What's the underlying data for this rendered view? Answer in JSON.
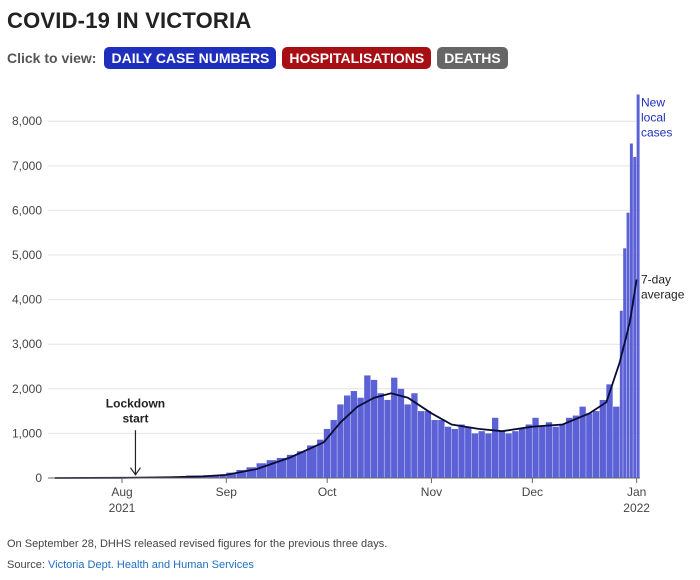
{
  "header": {
    "title": "COVID-19 IN VICTORIA",
    "toggle_label": "Click to view:",
    "buttons": [
      {
        "label": "DAILY CASE NUMBERS",
        "color": "#1e2fbe"
      },
      {
        "label": "HOSPITALISATIONS",
        "color": "#a60f14"
      },
      {
        "label": "DEATHS",
        "color": "#666666"
      }
    ]
  },
  "chart_data": {
    "type": "bar",
    "x_start": "2021-07-10",
    "x_end": "2022-01-02",
    "ylim": [
      0,
      8700
    ],
    "y_ticks": [
      0,
      1000,
      2000,
      3000,
      4000,
      5000,
      6000,
      7000,
      8000
    ],
    "y_tick_labels": [
      "0",
      "1,000",
      "2,000",
      "3,000",
      "4,000",
      "5,000",
      "6,000",
      "7,000",
      "8,000"
    ],
    "x_ticks": [
      {
        "date": "2021-08-01",
        "label": "Aug",
        "sublabel": "2021"
      },
      {
        "date": "2021-09-01",
        "label": "Sep",
        "sublabel": ""
      },
      {
        "date": "2021-10-01",
        "label": "Oct",
        "sublabel": ""
      },
      {
        "date": "2021-11-01",
        "label": "Nov",
        "sublabel": ""
      },
      {
        "date": "2021-12-01",
        "label": "Dec",
        "sublabel": ""
      },
      {
        "date": "2022-01-01",
        "label": "Jan",
        "sublabel": "2022"
      }
    ],
    "grid": true,
    "colors": {
      "bars": "#5c62d6",
      "line": "#0a0d33",
      "label": "#1e2fbe"
    },
    "series": [
      {
        "name": "New local cases",
        "kind": "bar",
        "points": [
          [
            "2021-07-12",
            0
          ],
          [
            "2021-07-17",
            8
          ],
          [
            "2021-07-22",
            12
          ],
          [
            "2021-07-27",
            10
          ],
          [
            "2021-08-01",
            8
          ],
          [
            "2021-08-05",
            6
          ],
          [
            "2021-08-10",
            12
          ],
          [
            "2021-08-15",
            22
          ],
          [
            "2021-08-20",
            55
          ],
          [
            "2021-08-25",
            60
          ],
          [
            "2021-08-30",
            75
          ],
          [
            "2021-09-01",
            120
          ],
          [
            "2021-09-04",
            180
          ],
          [
            "2021-09-07",
            240
          ],
          [
            "2021-09-10",
            330
          ],
          [
            "2021-09-13",
            400
          ],
          [
            "2021-09-16",
            450
          ],
          [
            "2021-09-19",
            520
          ],
          [
            "2021-09-22",
            600
          ],
          [
            "2021-09-25",
            730
          ],
          [
            "2021-09-28",
            860
          ],
          [
            "2021-09-30",
            1100
          ],
          [
            "2021-10-02",
            1300
          ],
          [
            "2021-10-04",
            1650
          ],
          [
            "2021-10-06",
            1850
          ],
          [
            "2021-10-08",
            1950
          ],
          [
            "2021-10-10",
            1800
          ],
          [
            "2021-10-12",
            2300
          ],
          [
            "2021-10-14",
            2200
          ],
          [
            "2021-10-16",
            1900
          ],
          [
            "2021-10-18",
            1750
          ],
          [
            "2021-10-20",
            2250
          ],
          [
            "2021-10-22",
            2000
          ],
          [
            "2021-10-24",
            1650
          ],
          [
            "2021-10-26",
            1900
          ],
          [
            "2021-10-28",
            1500
          ],
          [
            "2021-10-30",
            1500
          ],
          [
            "2021-11-01",
            1300
          ],
          [
            "2021-11-03",
            1300
          ],
          [
            "2021-11-05",
            1150
          ],
          [
            "2021-11-07",
            1100
          ],
          [
            "2021-11-09",
            1200
          ],
          [
            "2021-11-11",
            1150
          ],
          [
            "2021-11-13",
            1000
          ],
          [
            "2021-11-15",
            1050
          ],
          [
            "2021-11-17",
            1000
          ],
          [
            "2021-11-19",
            1350
          ],
          [
            "2021-11-21",
            1050
          ],
          [
            "2021-11-23",
            1000
          ],
          [
            "2021-11-25",
            1050
          ],
          [
            "2021-11-27",
            1100
          ],
          [
            "2021-11-29",
            1200
          ],
          [
            "2021-12-01",
            1350
          ],
          [
            "2021-12-03",
            1150
          ],
          [
            "2021-12-05",
            1250
          ],
          [
            "2021-12-07",
            1150
          ],
          [
            "2021-12-09",
            1200
          ],
          [
            "2021-12-11",
            1350
          ],
          [
            "2021-12-13",
            1400
          ],
          [
            "2021-12-15",
            1600
          ],
          [
            "2021-12-17",
            1450
          ],
          [
            "2021-12-19",
            1500
          ],
          [
            "2021-12-21",
            1750
          ],
          [
            "2021-12-23",
            2100
          ],
          [
            "2021-12-25",
            1600
          ],
          [
            "2021-12-27",
            3750
          ],
          [
            "2021-12-28",
            5150
          ],
          [
            "2021-12-29",
            5950
          ],
          [
            "2021-12-30",
            7500
          ],
          [
            "2021-12-31",
            7200
          ],
          [
            "2022-01-01",
            8600
          ]
        ]
      },
      {
        "name": "7-day average",
        "kind": "line",
        "points": [
          [
            "2021-07-12",
            0
          ],
          [
            "2021-08-01",
            5
          ],
          [
            "2021-08-15",
            15
          ],
          [
            "2021-08-25",
            35
          ],
          [
            "2021-09-01",
            70
          ],
          [
            "2021-09-10",
            200
          ],
          [
            "2021-09-20",
            460
          ],
          [
            "2021-09-30",
            800
          ],
          [
            "2021-10-05",
            1250
          ],
          [
            "2021-10-10",
            1600
          ],
          [
            "2021-10-15",
            1800
          ],
          [
            "2021-10-20",
            1900
          ],
          [
            "2021-10-25",
            1800
          ],
          [
            "2021-11-01",
            1450
          ],
          [
            "2021-11-07",
            1200
          ],
          [
            "2021-11-15",
            1100
          ],
          [
            "2021-11-22",
            1050
          ],
          [
            "2021-12-01",
            1150
          ],
          [
            "2021-12-10",
            1200
          ],
          [
            "2021-12-18",
            1450
          ],
          [
            "2021-12-23",
            1700
          ],
          [
            "2021-12-27",
            2600
          ],
          [
            "2021-12-30",
            3500
          ],
          [
            "2022-01-01",
            4450
          ]
        ]
      }
    ],
    "annotations": [
      {
        "text": [
          "Lockdown",
          "start"
        ],
        "date": "2021-08-05",
        "y": 1250,
        "arrow_to": 30
      }
    ]
  },
  "footer": {
    "note": "On September 28, DHHS released revised figures for the previous three days.",
    "source_label": "Source:",
    "source_name": "Victoria Dept. Health and Human Services"
  }
}
